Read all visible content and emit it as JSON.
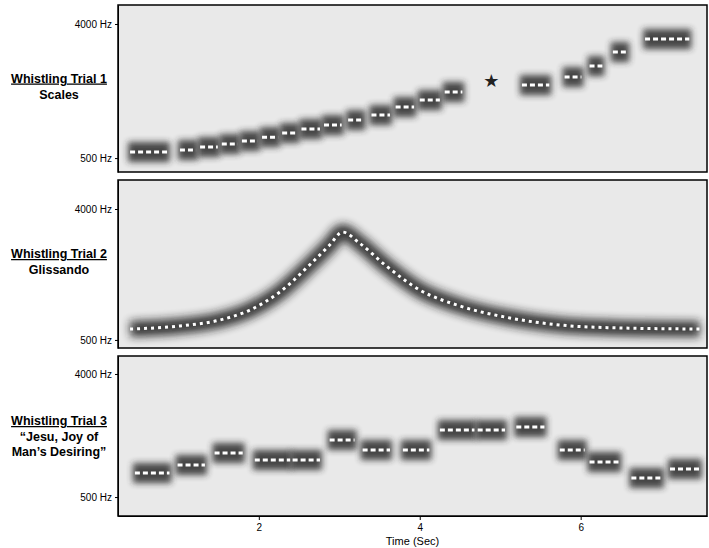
{
  "chart_data": [
    {
      "type": "segment",
      "title": "Whistling Trial 1",
      "subtitle": [
        "Scales"
      ],
      "xlim": [
        0.25,
        7.57
      ],
      "ylim": [
        403,
        5370
      ],
      "log": "y",
      "yticks": [
        {
          "value": 500,
          "label": "500 Hz"
        },
        {
          "value": 4000,
          "label": "4000 Hz"
        }
      ],
      "tick_labels": "y",
      "x_start": [
        0.4,
        1.02,
        1.27,
        1.54,
        1.79,
        2.04,
        2.29,
        2.53,
        2.81,
        3.11,
        3.4,
        3.7,
        4.0,
        4.31,
        5.27,
        5.8,
        6.11,
        6.4,
        6.8
      ],
      "x_end": [
        0.87,
        1.22,
        1.49,
        1.74,
        1.99,
        2.24,
        2.48,
        2.76,
        3.03,
        3.3,
        3.63,
        3.93,
        4.25,
        4.53,
        5.61,
        6.01,
        6.27,
        6.58,
        7.35
      ],
      "values": [
        549,
        566,
        593,
        621,
        651,
        692,
        737,
        784,
        834,
        901,
        974,
        1103,
        1229,
        1392,
        1551,
        1756,
        2082,
        2587,
        3165
      ],
      "annotations": [
        {
          "x": 4.89,
          "y": 1676,
          "label": "★"
        }
      ]
    },
    {
      "type": "line",
      "title": "Whistling Trial 2",
      "subtitle": [
        "Glissando"
      ],
      "xlim": [
        0.25,
        7.57
      ],
      "ylim": [
        440,
        6340
      ],
      "log": "y",
      "yticks": [
        {
          "value": 500,
          "label": "500 Hz"
        },
        {
          "value": 4000,
          "label": "4000 Hz"
        }
      ],
      "tick_labels": "y",
      "x": [
        0.4,
        1.02,
        1.52,
        1.89,
        2.26,
        2.63,
        2.88,
        3.04,
        3.25,
        3.57,
        4.0,
        4.5,
        5.12,
        5.74,
        6.48,
        7.48
      ],
      "values": [
        595,
        624,
        687,
        805,
        1070,
        1643,
        2257,
        2773,
        2329,
        1643,
        1105,
        857,
        709,
        634,
        605,
        595
      ]
    },
    {
      "type": "segment",
      "title": "Whistling Trial 3",
      "subtitle": [
        "“Jesu, Joy of",
        "Man’s Desiring”"
      ],
      "xlim": [
        0.25,
        7.57
      ],
      "ylim": [
        363,
        5420
      ],
      "log": "y",
      "xticks": [
        2,
        4,
        6
      ],
      "xlabel": "Time (Sec)",
      "yticks": [
        {
          "value": 500,
          "label": "500 Hz"
        },
        {
          "value": 4000,
          "label": "4000 Hz"
        }
      ],
      "x_start": [
        0.46,
        0.99,
        1.45,
        1.95,
        2.42,
        2.88,
        3.29,
        3.79,
        4.25,
        4.72,
        5.2,
        5.74,
        6.11,
        6.63,
        7.11
      ],
      "x_end": [
        0.89,
        1.33,
        1.8,
        2.39,
        2.76,
        3.19,
        3.63,
        4.12,
        4.68,
        5.06,
        5.55,
        6.05,
        6.48,
        7.01,
        7.48
      ],
      "values": [
        750,
        859,
        1052,
        935,
        935,
        1311,
        1107,
        1107,
        1552,
        1552,
        1633,
        1107,
        903,
        690,
        803
      ]
    }
  ]
}
